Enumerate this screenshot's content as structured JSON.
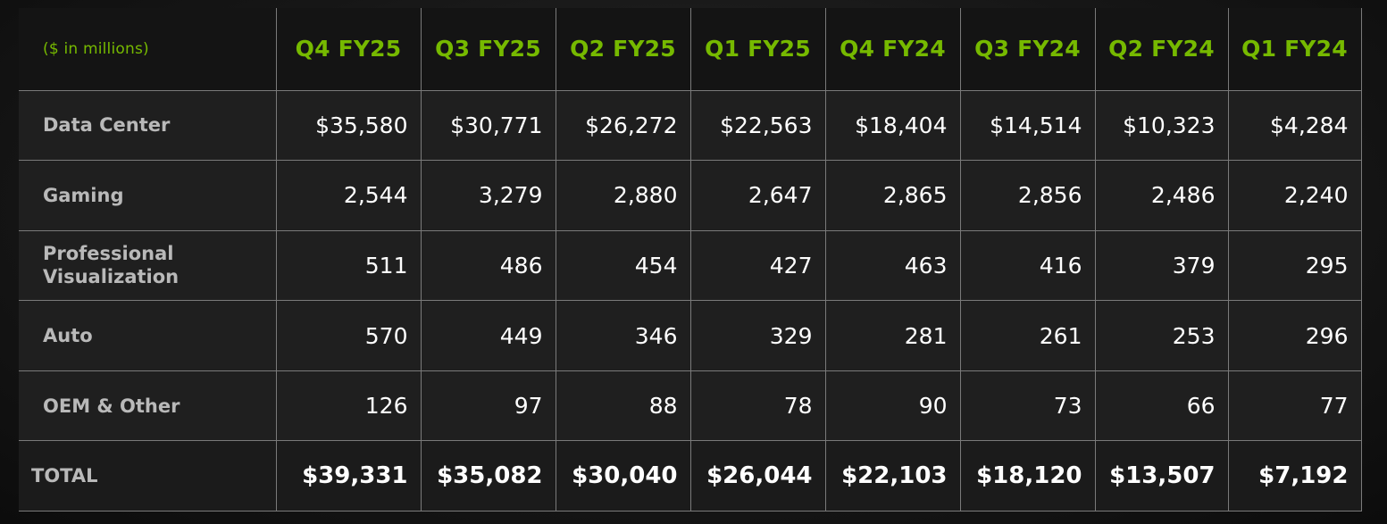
{
  "table": {
    "unit_label": "($ in millions)",
    "columns": [
      "Q4 FY25",
      "Q3 FY25",
      "Q2 FY25",
      "Q1 FY25",
      "Q4 FY24",
      "Q3 FY24",
      "Q2 FY24",
      "Q1 FY24"
    ],
    "rows": [
      {
        "label": "Data Center",
        "values": [
          "$35,580",
          "$30,771",
          "$26,272",
          "$22,563",
          "$18,404",
          "$14,514",
          "$10,323",
          "$4,284"
        ]
      },
      {
        "label": "Gaming",
        "values": [
          "2,544",
          "3,279",
          "2,880",
          "2,647",
          "2,865",
          "2,856",
          "2,486",
          "2,240"
        ]
      },
      {
        "label": "Professional Visualization",
        "values": [
          "511",
          "486",
          "454",
          "427",
          "463",
          "416",
          "379",
          "295"
        ]
      },
      {
        "label": "Auto",
        "values": [
          "570",
          "449",
          "346",
          "329",
          "281",
          "261",
          "253",
          "296"
        ]
      },
      {
        "label": "OEM & Other",
        "values": [
          "126",
          "97",
          "88",
          "78",
          "90",
          "73",
          "66",
          "77"
        ]
      }
    ],
    "total": {
      "label": "TOTAL",
      "values": [
        "$39,331",
        "$35,082",
        "$30,040",
        "$26,044",
        "$22,103",
        "$18,120",
        "$13,507",
        "$7,192"
      ]
    }
  },
  "colors": {
    "accent": "#76b900",
    "header_bg": "#141414",
    "cell_bg": "#1f1f1f",
    "border": "#7a7a7a"
  }
}
